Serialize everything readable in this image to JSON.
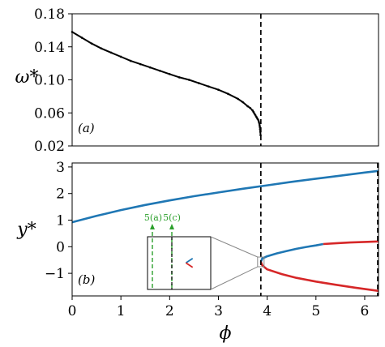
{
  "chart_data": [
    {
      "panel": "(a)",
      "type": "scatter",
      "xlabel": "",
      "ylabel": "ω*",
      "xlim": [
        0,
        6.2832
      ],
      "ylim": [
        0.02,
        0.18
      ],
      "yticks": [
        "0.02",
        "0.06",
        "0.10",
        "0.14",
        "0.18"
      ],
      "grid": false,
      "series": [
        {
          "color": "#000000",
          "x": [
            0.0,
            0.2,
            0.4,
            0.6,
            0.8,
            1.0,
            1.2,
            1.4,
            1.6,
            1.8,
            2.0,
            2.2,
            2.4,
            2.6,
            2.8,
            3.0,
            3.2,
            3.4,
            3.5,
            3.6,
            3.65,
            3.7,
            3.72,
            3.74,
            3.76,
            3.78,
            3.8,
            3.82,
            3.83,
            3.84,
            3.845,
            3.85,
            3.855,
            3.86,
            3.865
          ],
          "y": [
            0.158,
            0.151,
            0.144,
            0.138,
            0.133,
            0.128,
            0.123,
            0.119,
            0.115,
            0.111,
            0.107,
            0.103,
            0.1,
            0.096,
            0.092,
            0.088,
            0.083,
            0.077,
            0.073,
            0.068,
            0.066,
            0.063,
            0.061,
            0.059,
            0.057,
            0.055,
            0.053,
            0.051,
            0.049,
            0.047,
            0.045,
            0.043,
            0.04,
            0.037,
            0.033
          ]
        }
      ],
      "vlines": [
        {
          "x": 3.87,
          "style": "dashed",
          "color": "#000000"
        }
      ]
    },
    {
      "panel": "(b)",
      "type": "line",
      "xlabel": "ϕ",
      "ylabel": "y*",
      "xlim": [
        0,
        6.2832
      ],
      "ylim": [
        -1.85,
        3.15
      ],
      "xticks": [
        "0",
        "1",
        "2",
        "3",
        "4",
        "5",
        "6"
      ],
      "yticks": [
        "−1",
        "0",
        "1",
        "2",
        "3"
      ],
      "grid": false,
      "series": [
        {
          "color": "#1f77b4",
          "x": [
            0.0,
            0.5,
            1.0,
            1.5,
            2.0,
            2.5,
            3.0,
            3.5,
            4.0,
            4.5,
            5.0,
            5.5,
            6.0,
            6.2832
          ],
          "y": [
            0.92,
            1.16,
            1.38,
            1.57,
            1.74,
            1.9,
            2.04,
            2.18,
            2.31,
            2.44,
            2.56,
            2.67,
            2.79,
            2.85
          ]
        },
        {
          "color": "#1f77b4",
          "x": [
            3.87,
            3.9,
            4.0,
            4.2,
            4.4,
            4.6,
            4.8,
            5.0,
            5.15
          ],
          "y": [
            -0.57,
            -0.44,
            -0.36,
            -0.25,
            -0.16,
            -0.08,
            -0.01,
            0.05,
            0.1
          ]
        },
        {
          "color": "#d62728",
          "x": [
            5.15,
            5.4,
            5.7,
            6.0,
            6.2832
          ],
          "y": [
            0.1,
            0.13,
            0.16,
            0.18,
            0.2
          ]
        },
        {
          "color": "#d62728",
          "x": [
            3.87,
            3.9,
            4.0,
            4.3,
            4.6,
            5.0,
            5.4,
            5.8,
            6.2832
          ],
          "y": [
            -0.57,
            -0.7,
            -0.85,
            -1.03,
            -1.17,
            -1.31,
            -1.43,
            -1.54,
            -1.66
          ]
        }
      ],
      "vlines": [
        {
          "x": 3.87,
          "style": "dashed",
          "color": "#000000"
        },
        {
          "x": 6.2832,
          "style": "dashed",
          "color": "#000000"
        }
      ],
      "inset": {
        "annotations": [
          "5(a)",
          "5(c)"
        ],
        "annotation_color": "#2ca02c"
      }
    }
  ]
}
